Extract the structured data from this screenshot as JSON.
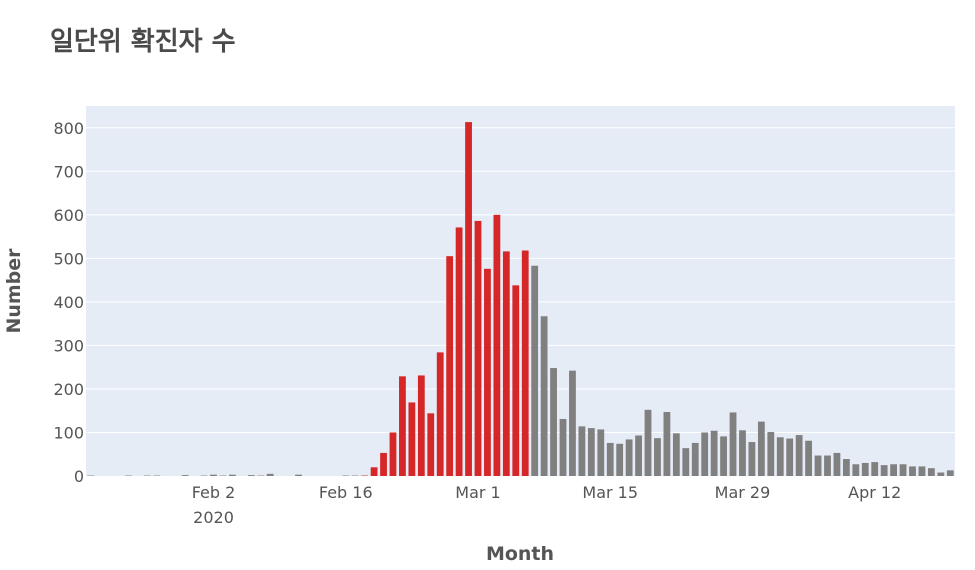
{
  "chart_data": {
    "type": "bar",
    "title": "일단위 확진자 수",
    "xlabel": "Month",
    "ylabel": "Number",
    "ylim": [
      0,
      850
    ],
    "yticks": [
      0,
      100,
      200,
      300,
      400,
      500,
      600,
      700,
      800
    ],
    "x_start": "2020-01-20",
    "x_end": "2020-04-20",
    "xticks": [
      {
        "date": "2020-02-02",
        "label": "Feb 2",
        "sublabel": "2020"
      },
      {
        "date": "2020-02-16",
        "label": "Feb 16",
        "sublabel": ""
      },
      {
        "date": "2020-03-01",
        "label": "Mar 1",
        "sublabel": ""
      },
      {
        "date": "2020-03-15",
        "label": "Mar 15",
        "sublabel": ""
      },
      {
        "date": "2020-03-29",
        "label": "Mar 29",
        "sublabel": ""
      },
      {
        "date": "2020-04-12",
        "label": "Apr 12",
        "sublabel": ""
      }
    ],
    "grid": true,
    "colors": {
      "peak": "#d62728",
      "normal": "#808080",
      "plot_bg": "#e5ecf6",
      "grid": "#ffffff"
    },
    "dates": [
      "2020-01-20",
      "2020-01-21",
      "2020-01-22",
      "2020-01-23",
      "2020-01-24",
      "2020-01-25",
      "2020-01-26",
      "2020-01-27",
      "2020-01-28",
      "2020-01-29",
      "2020-01-30",
      "2020-01-31",
      "2020-02-01",
      "2020-02-02",
      "2020-02-03",
      "2020-02-04",
      "2020-02-05",
      "2020-02-06",
      "2020-02-07",
      "2020-02-08",
      "2020-02-09",
      "2020-02-10",
      "2020-02-11",
      "2020-02-12",
      "2020-02-13",
      "2020-02-14",
      "2020-02-15",
      "2020-02-16",
      "2020-02-17",
      "2020-02-18",
      "2020-02-19",
      "2020-02-20",
      "2020-02-21",
      "2020-02-22",
      "2020-02-23",
      "2020-02-24",
      "2020-02-25",
      "2020-02-26",
      "2020-02-27",
      "2020-02-28",
      "2020-02-29",
      "2020-03-01",
      "2020-03-02",
      "2020-03-03",
      "2020-03-04",
      "2020-03-05",
      "2020-03-06",
      "2020-03-07",
      "2020-03-08",
      "2020-03-09",
      "2020-03-10",
      "2020-03-11",
      "2020-03-12",
      "2020-03-13",
      "2020-03-14",
      "2020-03-15",
      "2020-03-16",
      "2020-03-17",
      "2020-03-18",
      "2020-03-19",
      "2020-03-20",
      "2020-03-21",
      "2020-03-22",
      "2020-03-23",
      "2020-03-24",
      "2020-03-25",
      "2020-03-26",
      "2020-03-27",
      "2020-03-28",
      "2020-03-29",
      "2020-03-30",
      "2020-03-31",
      "2020-04-01",
      "2020-04-02",
      "2020-04-03",
      "2020-04-04",
      "2020-04-05",
      "2020-04-06",
      "2020-04-07",
      "2020-04-08",
      "2020-04-09",
      "2020-04-10",
      "2020-04-11",
      "2020-04-12",
      "2020-04-13",
      "2020-04-14",
      "2020-04-15",
      "2020-04-16",
      "2020-04-17",
      "2020-04-18",
      "2020-04-19",
      "2020-04-20"
    ],
    "values": [
      1,
      0,
      0,
      0,
      1,
      0,
      1,
      1,
      0,
      0,
      2,
      0,
      1,
      3,
      1,
      3,
      0,
      2,
      1,
      5,
      0,
      0,
      3,
      0,
      0,
      0,
      0,
      1,
      1,
      1,
      20,
      53,
      100,
      229,
      169,
      231,
      144,
      284,
      505,
      571,
      813,
      586,
      476,
      600,
      516,
      438,
      518,
      483,
      367,
      248,
      131,
      242,
      114,
      110,
      107,
      76,
      74,
      84,
      93,
      152,
      87,
      147,
      98,
      64,
      76,
      100,
      104,
      91,
      146,
      105,
      78,
      125,
      101,
      89,
      86,
      94,
      81,
      47,
      47,
      53,
      39,
      27,
      30,
      32,
      25,
      27,
      27,
      22,
      22,
      18,
      8,
      13
    ],
    "peak_range": [
      "2020-02-18",
      "2020-03-06"
    ]
  }
}
